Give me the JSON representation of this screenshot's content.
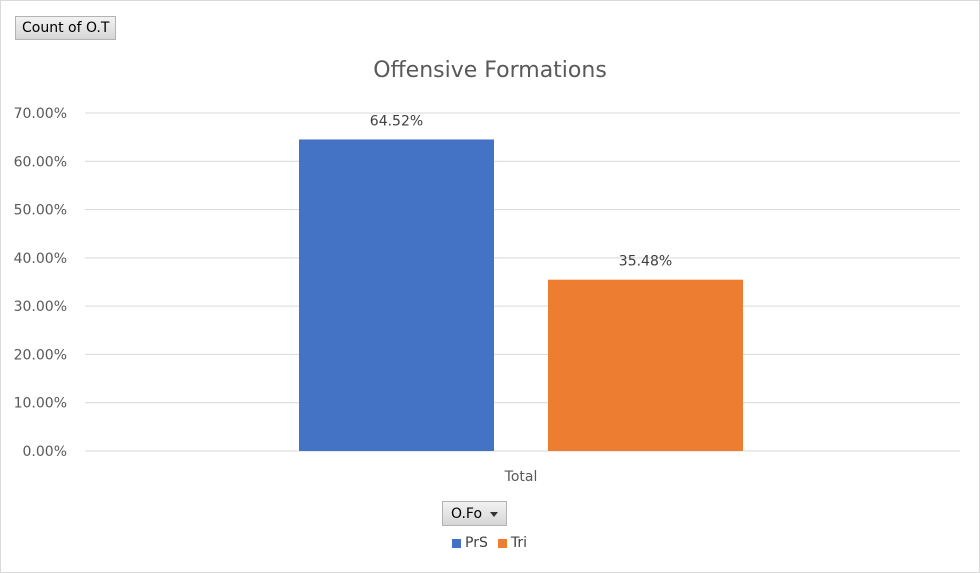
{
  "pivot": {
    "value_field": "Count of O.T",
    "axis_field": "O.Fo"
  },
  "chart_data": {
    "type": "bar",
    "title": "Offensive Formations",
    "categories": [
      "Total"
    ],
    "series": [
      {
        "name": "PrS",
        "values": [
          64.52
        ],
        "label": "64.52%",
        "color": "#4472c4"
      },
      {
        "name": "Tri",
        "values": [
          35.48
        ],
        "label": "35.48%",
        "color": "#ed7d31"
      }
    ],
    "ylim": [
      0,
      70
    ],
    "yticks": [
      "0.00%",
      "10.00%",
      "20.00%",
      "30.00%",
      "40.00%",
      "50.00%",
      "60.00%",
      "70.00%"
    ],
    "ytick_values": [
      0,
      10,
      20,
      30,
      40,
      50,
      60,
      70
    ],
    "grid": true,
    "legend_position": "bottom",
    "gridline_color": "#d9d9d9"
  }
}
